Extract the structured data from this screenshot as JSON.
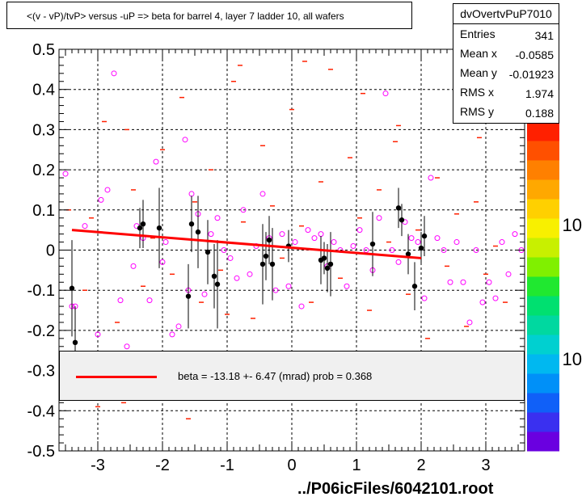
{
  "header": {
    "title": "<(v - vP)/tvP> versus  -uP => beta for barrel 4, layer 7 ladder 10, all wafers"
  },
  "stats": {
    "title": "dvOvertvPuP7010",
    "rows": [
      {
        "key": "Entries",
        "value": "341"
      },
      {
        "key": "Mean x",
        "value": "-0.0585"
      },
      {
        "key": "Mean y",
        "value": "-0.01923"
      },
      {
        "key": "RMS x",
        "value": "1.974"
      },
      {
        "key": "RMS y",
        "value": "0.188"
      }
    ]
  },
  "legend": {
    "fit_text": "beta =  -13.18 +-  6.47 (mrad) prob = 0.368",
    "fit_color": "#ff0000"
  },
  "footer": "../P06icFiles/6042101.root",
  "palette": {
    "labels": [
      "10",
      "10"
    ],
    "colors": [
      "#6a00e0",
      "#3a30f0",
      "#1060f8",
      "#0090f8",
      "#00b8f0",
      "#00d0d0",
      "#00d8a0",
      "#00e070",
      "#20e830",
      "#80f000",
      "#c8f000",
      "#f8f000",
      "#ffd000",
      "#ffa800",
      "#ff8000",
      "#ff5000",
      "#ff2000"
    ]
  },
  "chart_data": {
    "type": "scatter",
    "xlim": [
      -3.6,
      3.6
    ],
    "ylim": [
      -0.5,
      0.5
    ],
    "x_ticks": [
      -3,
      -2,
      -1,
      0,
      1,
      2,
      3
    ],
    "y_ticks": [
      -0.5,
      -0.4,
      -0.3,
      -0.2,
      -0.1,
      0,
      0.1,
      0.2,
      0.3,
      0.4,
      0.5
    ],
    "grid": true,
    "fit_line": {
      "x": [
        -3.4,
        2.0
      ],
      "y": [
        0.05,
        -0.02
      ]
    },
    "profile_points": {
      "x": [
        -3.4,
        -3.35,
        -2.35,
        -2.3,
        -2.05,
        -1.6,
        -1.55,
        -1.45,
        -1.3,
        -1.2,
        -1.15,
        -0.45,
        -0.4,
        -0.35,
        -0.3,
        -0.05,
        0.45,
        0.5,
        0.55,
        0.6,
        1.25,
        1.65,
        1.7,
        1.8,
        1.9,
        2.0,
        2.05
      ],
      "y": [
        -0.095,
        -0.23,
        0.055,
        0.065,
        0.055,
        -0.115,
        0.065,
        0.045,
        -0.005,
        -0.065,
        -0.085,
        -0.035,
        -0.015,
        0.025,
        -0.035,
        0.01,
        -0.025,
        -0.02,
        -0.045,
        -0.035,
        0.015,
        0.105,
        0.075,
        -0.01,
        -0.09,
        0.005,
        0.035
      ],
      "err": [
        0.12,
        0.09,
        0.05,
        0.06,
        0.1,
        0.08,
        0.07,
        0.09,
        0.08,
        0.08,
        0.11,
        0.1,
        0.06,
        0.06,
        0.09,
        0.04,
        0.06,
        0.04,
        0.06,
        0.08,
        0.08,
        0.05,
        0.04,
        0.05,
        0.06,
        0.04,
        0.05
      ]
    },
    "magenta_points": {
      "x": [
        -3.5,
        -3.4,
        -3.35,
        -3.2,
        -3.0,
        -2.95,
        -2.85,
        -2.75,
        -2.65,
        -2.55,
        -2.45,
        -2.4,
        -2.3,
        -2.2,
        -2.1,
        -2.0,
        -1.95,
        -1.85,
        -1.75,
        -1.65,
        -1.6,
        -1.55,
        -1.45,
        -1.35,
        -1.25,
        -1.15,
        -1.05,
        -0.95,
        -0.85,
        -0.75,
        -0.65,
        -0.55,
        -0.45,
        -0.35,
        -0.25,
        -0.15,
        -0.05,
        0.05,
        0.15,
        0.25,
        0.35,
        0.45,
        0.55,
        0.65,
        0.75,
        0.85,
        0.95,
        1.05,
        1.15,
        1.25,
        1.35,
        1.45,
        1.55,
        1.65,
        1.75,
        1.85,
        1.95,
        2.05,
        2.15,
        2.25,
        2.35,
        2.45,
        2.55,
        2.65,
        2.75,
        2.85,
        2.95,
        3.05,
        3.15,
        3.25,
        3.35,
        3.45,
        3.55
      ],
      "y": [
        0.19,
        -0.14,
        -0.14,
        0.06,
        -0.21,
        0.125,
        0.15,
        0.44,
        -0.125,
        -0.24,
        -0.04,
        0.06,
        0.03,
        -0.125,
        0.22,
        -0.03,
        0.02,
        -0.21,
        -0.19,
        0.275,
        -0.1,
        0.14,
        0.09,
        -0.11,
        0.04,
        0.08,
        0.0,
        -0.02,
        -0.07,
        0.1,
        -0.06,
        0.01,
        0.14,
        0.03,
        -0.1,
        0.04,
        -0.09,
        0.02,
        -0.14,
        0.05,
        0.03,
        0.04,
        -0.04,
        0.02,
        0.0,
        -0.09,
        0.01,
        0.05,
        0.0,
        -0.05,
        0.08,
        0.39,
        0.0,
        -0.03,
        0.07,
        0.03,
        0.02,
        -0.12,
        0.18,
        0.03,
        0.0,
        -0.08,
        0.02,
        -0.08,
        -0.18,
        0.0,
        -0.13,
        -0.08,
        -0.12,
        0.02,
        -0.06,
        0.04,
        0.0
      ]
    },
    "red_dashes": {
      "x": [
        -3.45,
        -3.2,
        -3.1,
        -2.9,
        -2.7,
        -2.55,
        -2.45,
        -2.3,
        -2.15,
        -2.0,
        -1.85,
        -1.7,
        -1.5,
        -1.4,
        -1.25,
        -1.1,
        -0.9,
        -0.75,
        -0.6,
        -0.45,
        -0.3,
        -0.15,
        0.0,
        0.15,
        0.3,
        0.45,
        0.6,
        0.75,
        0.9,
        1.05,
        1.2,
        1.35,
        1.5,
        1.65,
        1.8,
        1.95,
        2.1,
        2.25,
        2.4,
        2.55,
        2.7,
        2.85,
        3.0,
        3.15,
        3.3,
        -2.6,
        -1.6,
        -0.8,
        0.4,
        1.1,
        2.2,
        2.9,
        -3.0,
        -1.0,
        0.2,
        1.6
      ],
      "y": [
        0.1,
        -0.1,
        0.08,
        0.32,
        -0.18,
        0.3,
        0.15,
        -0.09,
        0.03,
        0.25,
        -0.06,
        0.38,
        0.12,
        -0.13,
        0.2,
        -0.05,
        0.42,
        0.07,
        -0.17,
        0.26,
        0.11,
        -0.02,
        0.35,
        0.06,
        -0.13,
        0.17,
        0.45,
        -0.07,
        0.23,
        0.08,
        -0.15,
        0.15,
        0.02,
        0.31,
        -0.11,
        0.05,
        -0.22,
        0.18,
        -0.04,
        0.09,
        -0.19,
        0.12,
        -0.06,
        0.01,
        -0.13,
        -0.38,
        -0.42,
        0.46,
        -0.26,
        0.39,
        -0.36,
        0.28,
        -0.39,
        -0.16,
        0.47,
        0.27
      ]
    }
  }
}
